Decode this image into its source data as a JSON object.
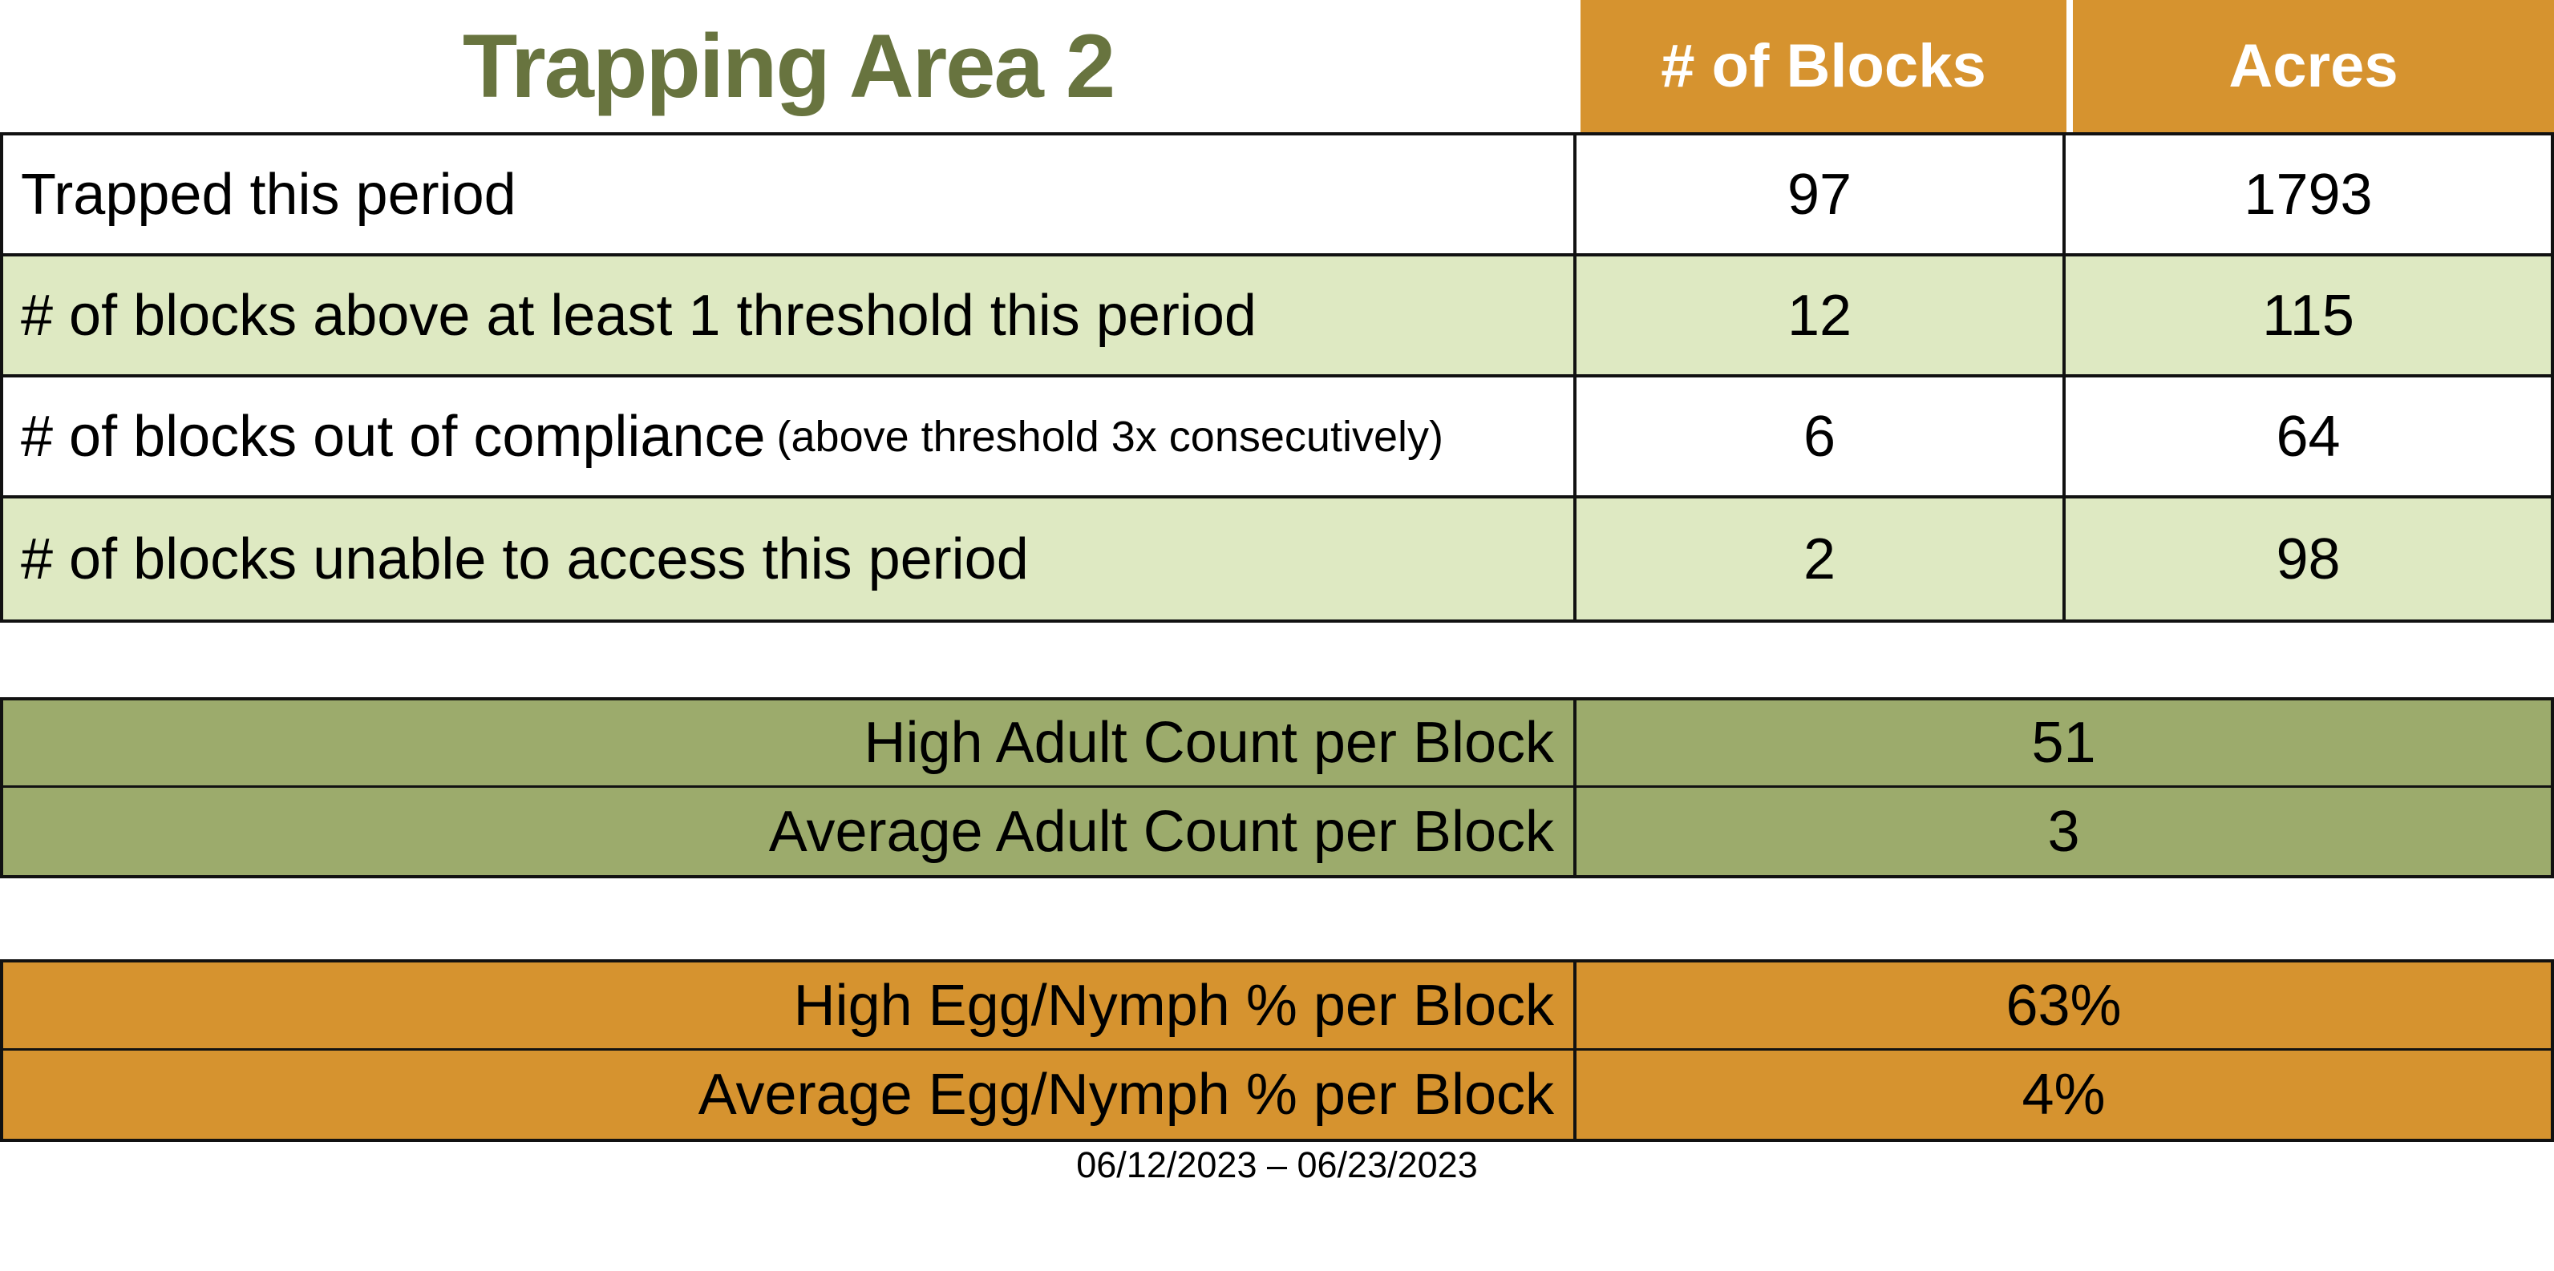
{
  "page": {
    "title": "Trapping Area 2",
    "date_range": "06/12/2023 – 06/23/2023"
  },
  "colors": {
    "header_orange": "#D6932F",
    "olive_green": "#9CAB6C",
    "light_green": "#DEE9C2",
    "title_green": "#68743F",
    "border": "#111111"
  },
  "main_table": {
    "col_headers": [
      "# of Blocks",
      "Acres"
    ],
    "rows": [
      {
        "label": "Trapped this period",
        "note": "",
        "blocks": "97",
        "acres": "1793"
      },
      {
        "label": "# of blocks above at least 1 threshold this period",
        "note": "",
        "blocks": "12",
        "acres": "115"
      },
      {
        "label": "# of blocks out of compliance",
        "note": "(above threshold 3x consecutively)",
        "blocks": "6",
        "acres": "64"
      },
      {
        "label": "# of blocks unable to access this period",
        "note": "",
        "blocks": "2",
        "acres": "98"
      }
    ]
  },
  "adult_counts": {
    "rows": [
      {
        "label": "High Adult Count per Block",
        "value": "51"
      },
      {
        "label": "Average Adult Count per Block",
        "value": "3"
      }
    ]
  },
  "egg_nymph": {
    "rows": [
      {
        "label": "High Egg/Nymph % per Block",
        "value": "63%"
      },
      {
        "label": "Average Egg/Nymph % per Block",
        "value": "4%"
      }
    ]
  }
}
